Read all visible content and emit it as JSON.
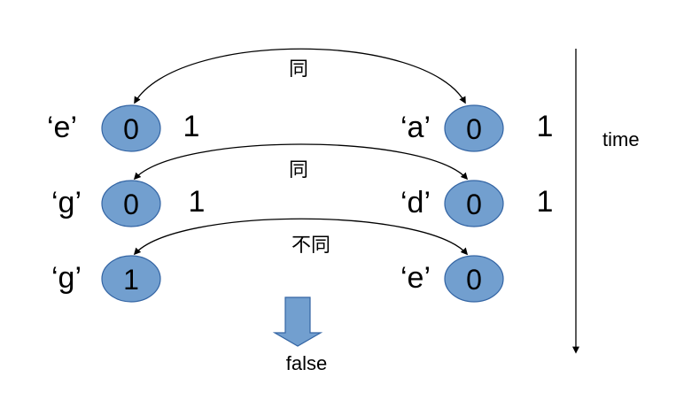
{
  "rows": [
    {
      "left": {
        "char": "‘e’",
        "value": "0",
        "count": "1"
      },
      "right": {
        "char": "‘a’",
        "value": "0",
        "count": "1"
      },
      "relation": "同"
    },
    {
      "left": {
        "char": "‘g’",
        "value": "0",
        "count": "1"
      },
      "right": {
        "char": "‘d’",
        "value": "0",
        "count": "1"
      },
      "relation": "同"
    },
    {
      "left": {
        "char": "‘g’",
        "value": "1",
        "count": ""
      },
      "right": {
        "char": "‘e’",
        "value": "0",
        "count": ""
      },
      "relation": "不同"
    }
  ],
  "result": "false",
  "time_label": "time",
  "colors": {
    "node_fill": "#729fcf",
    "node_stroke": "#3465a4",
    "result_arrow_fill": "#729fcf",
    "result_arrow_stroke": "#3465a4",
    "line": "#000000"
  }
}
